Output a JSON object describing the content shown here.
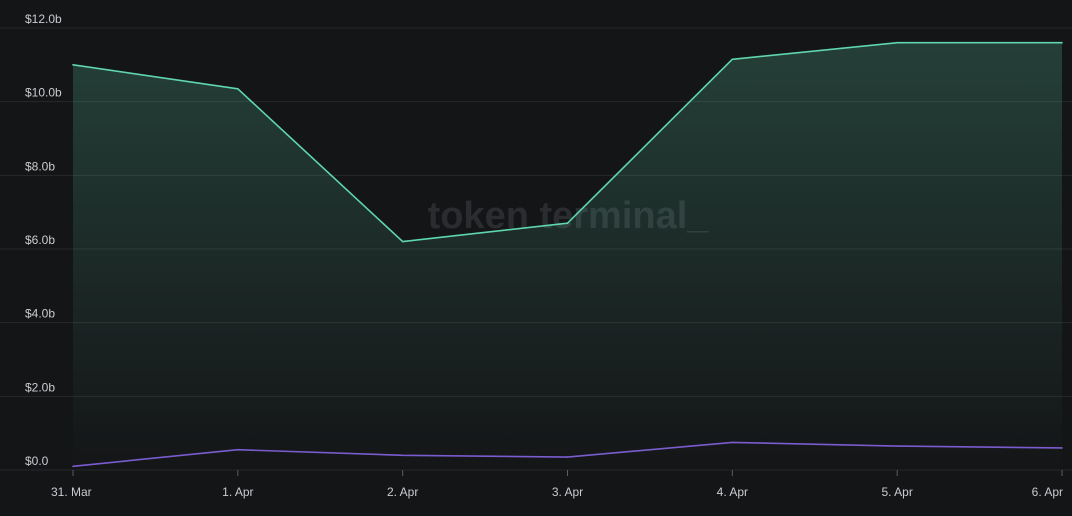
{
  "watermark": "token terminal_",
  "colors": {
    "background": "#141517",
    "grid": "#26282b",
    "tick_text": "#c9cbcf",
    "series_1": "#5fd6ad",
    "series_2": "#7a5ccf",
    "watermark": "#2a2c30"
  },
  "chart_data": {
    "type": "line",
    "title": "",
    "xlabel": "",
    "ylabel": "",
    "categories": [
      "31. Mar",
      "1. Apr",
      "2. Apr",
      "3. Apr",
      "4. Apr",
      "5. Apr",
      "6. Apr"
    ],
    "y_ticks": [
      "$0.0",
      "$2.0b",
      "$4.0b",
      "$6.0b",
      "$8.0b",
      "$10.0b",
      "$12.0b"
    ],
    "y_tick_values": [
      0,
      2,
      4,
      6,
      8,
      10,
      12
    ],
    "ylim": [
      0,
      12
    ],
    "grid": true,
    "series": [
      {
        "values": [
          11.0,
          10.35,
          6.2,
          6.7,
          11.15,
          11.6,
          11.6
        ],
        "area": true
      },
      {
        "values": [
          0.1,
          0.55,
          0.4,
          0.35,
          0.75,
          0.65,
          0.6
        ],
        "area": false
      }
    ]
  }
}
